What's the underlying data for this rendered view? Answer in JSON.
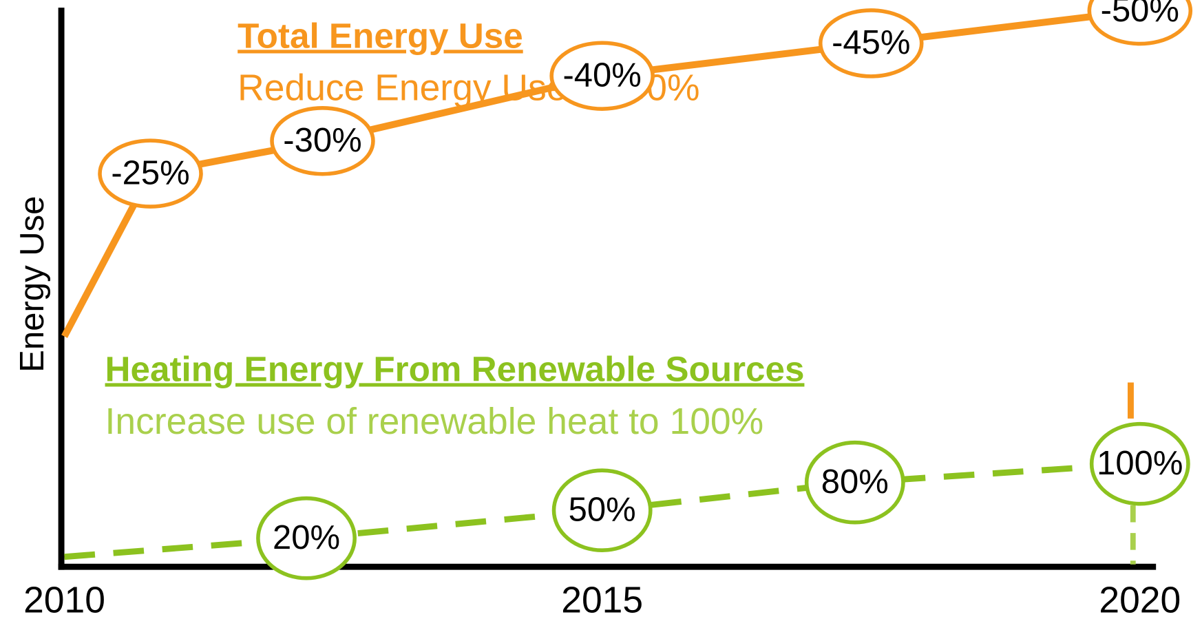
{
  "chart_data": {
    "type": "line",
    "ylabel": "Energy Use",
    "xlim": [
      2010,
      2020.2
    ],
    "xticks": [
      2010,
      2015,
      2020
    ],
    "grid": false,
    "series": [
      {
        "name": "Total Energy Use",
        "description": "Reduce Energy Use by 50%",
        "color": "#f7961e",
        "line_style": "solid",
        "x": [
          2010,
          2010.8,
          2012.4,
          2015,
          2017.5,
          2020
        ],
        "values": [
          0,
          -25,
          -30,
          -40,
          -45,
          -50
        ],
        "value_labels": [
          null,
          "-25%",
          "-30%",
          "-40%",
          "-45%",
          "-50%"
        ],
        "ylim": [
          -50,
          0
        ]
      },
      {
        "name": "Heating Energy From Renewable Sources",
        "description": "Increase use of renewable heat to 100%",
        "color": "#8cc21f",
        "description_color": "#a9d04c",
        "line_style": "dashed",
        "x": [
          2010,
          2012.25,
          2015,
          2017.35,
          2020
        ],
        "values": [
          0,
          20,
          50,
          80,
          100
        ],
        "value_labels": [
          null,
          "20%",
          "50%",
          "80%",
          "100%"
        ],
        "ylim": [
          0,
          100
        ]
      }
    ]
  }
}
